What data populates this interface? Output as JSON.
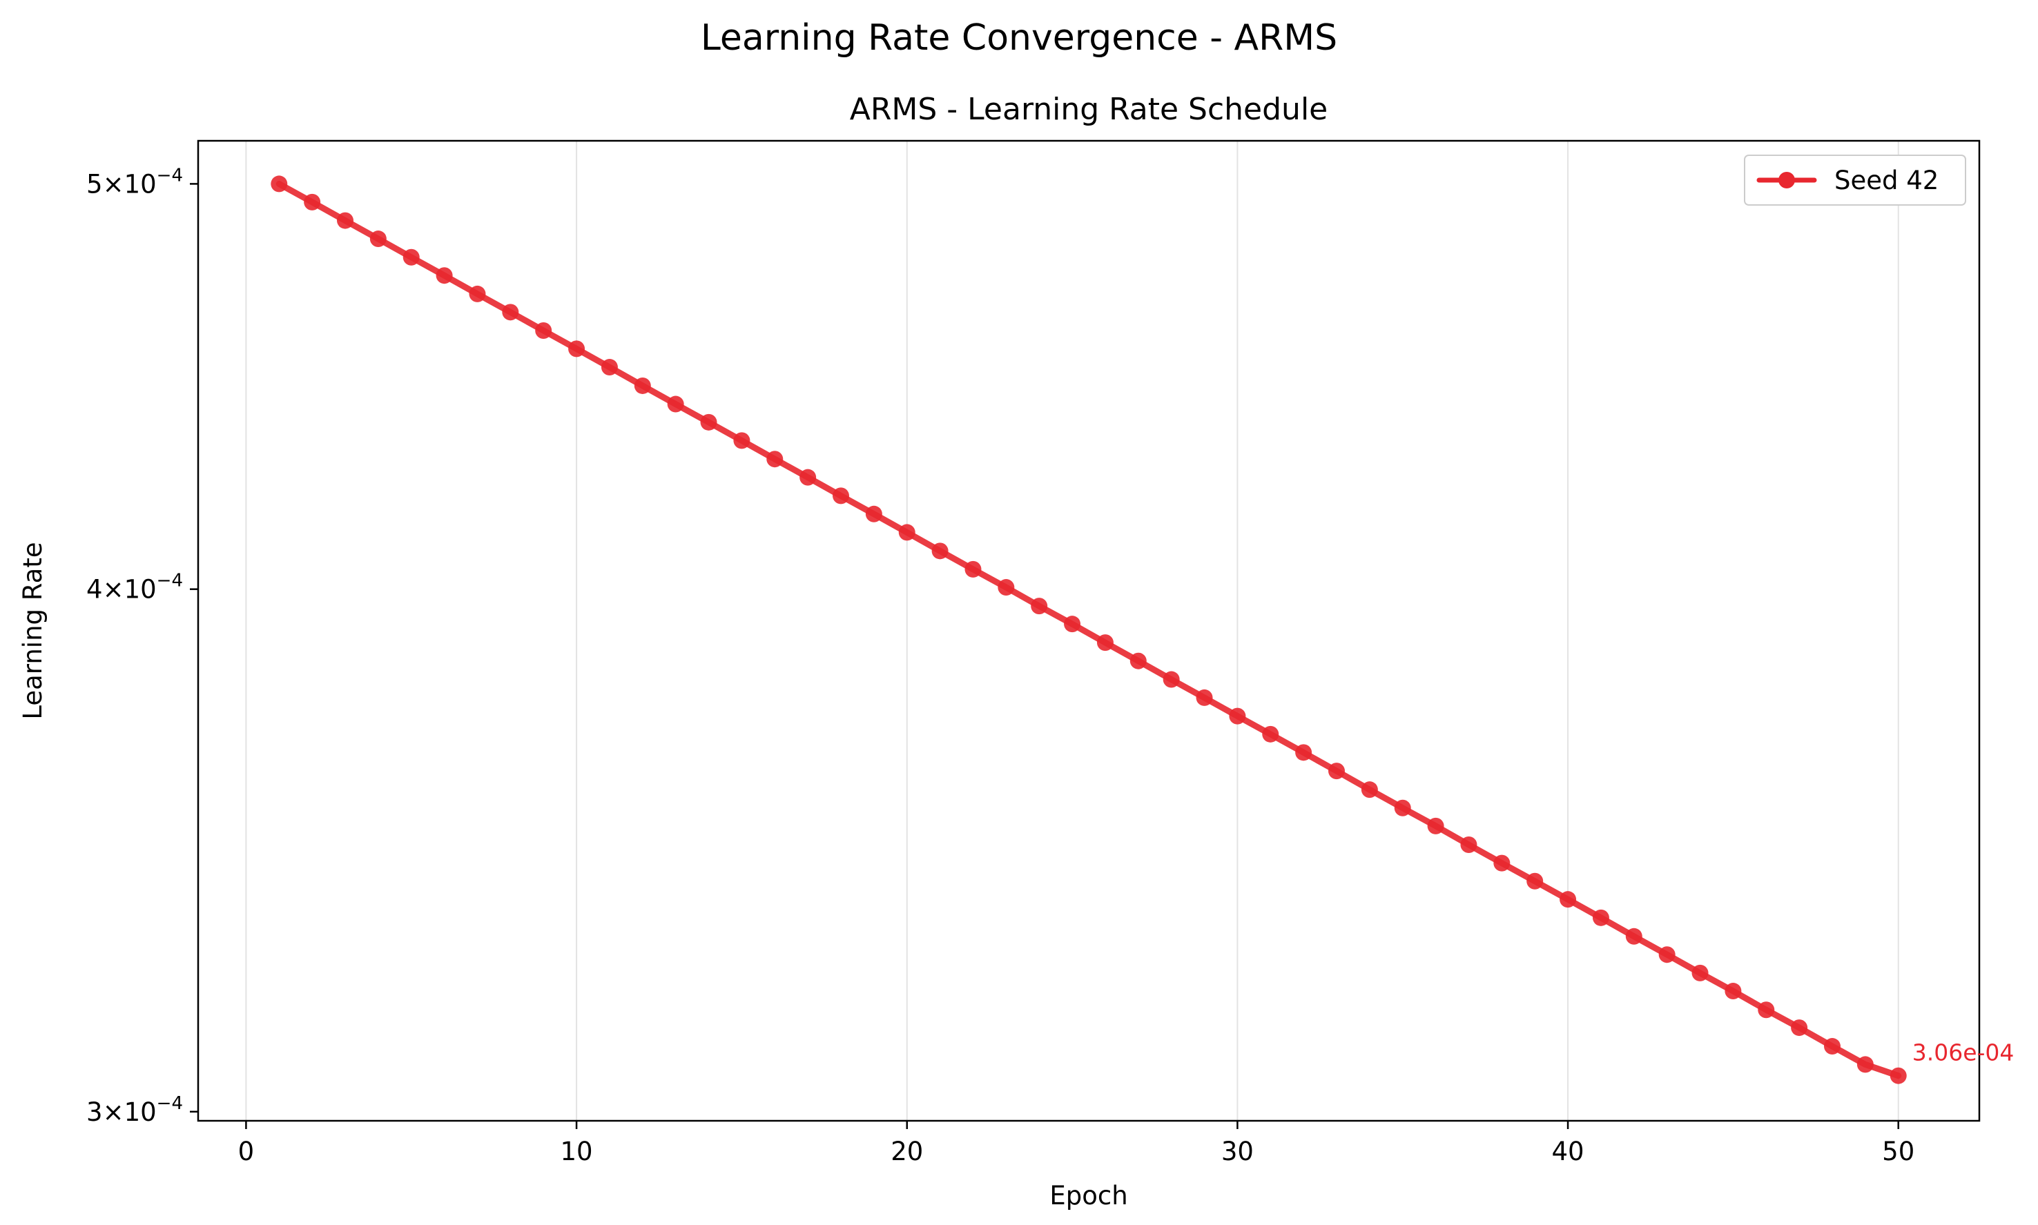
{
  "chart_data": {
    "type": "line",
    "suptitle": "Learning Rate Convergence - ARMS",
    "title": "ARMS - Learning Rate Schedule",
    "xlabel": "Epoch",
    "ylabel": "Learning Rate",
    "yscale": "log",
    "xlim": [
      -1.45,
      52.45
    ],
    "ylim": [
      0.0002985,
      0.000512
    ],
    "x_ticks": [
      0,
      10,
      20,
      30,
      40,
      50
    ],
    "y_ticks": [
      {
        "value": 0.0005,
        "mantissa": "5",
        "base": "×10",
        "exp": "−4"
      },
      {
        "value": 0.0004,
        "mantissa": "4",
        "base": "×10",
        "exp": "−4"
      },
      {
        "value": 0.0003,
        "mantissa": "3",
        "base": "×10",
        "exp": "−4"
      }
    ],
    "grid": "x-only",
    "legend_position": "top-right",
    "series": [
      {
        "name": "Seed 42",
        "color": "#e8272f",
        "x": [
          1,
          2,
          3,
          4,
          5,
          6,
          7,
          8,
          9,
          10,
          11,
          12,
          13,
          14,
          15,
          16,
          17,
          18,
          19,
          20,
          21,
          22,
          23,
          24,
          25,
          26,
          27,
          28,
          29,
          30,
          31,
          32,
          33,
          34,
          35,
          36,
          37,
          38,
          39,
          40,
          41,
          42,
          43,
          44,
          45,
          46,
          47,
          48,
          49,
          50
        ],
        "y": [
          0.0005,
          0.000495,
          0.00049,
          0.0004851,
          0.0004802,
          0.0004754,
          0.0004706,
          0.0004659,
          0.0004612,
          0.0004566,
          0.000452,
          0.0004474,
          0.0004429,
          0.0004385,
          0.0004341,
          0.0004297,
          0.0004254,
          0.0004211,
          0.0004169,
          0.0004127,
          0.0004085,
          0.0004044,
          0.0004004,
          0.0003963,
          0.0003924,
          0.0003884,
          0.0003845,
          0.0003806,
          0.0003768,
          0.000373,
          0.0003693,
          0.0003656,
          0.0003619,
          0.0003582,
          0.0003546,
          0.0003511,
          0.0003475,
          0.000344,
          0.0003406,
          0.0003372,
          0.0003338,
          0.0003304,
          0.0003271,
          0.0003238,
          0.0003206,
          0.0003173,
          0.0003142,
          0.000311,
          0.0003079,
          0.000306
        ]
      }
    ],
    "annotation": {
      "text": "3.06e-04",
      "x": 50,
      "y": 0.000306
    }
  }
}
